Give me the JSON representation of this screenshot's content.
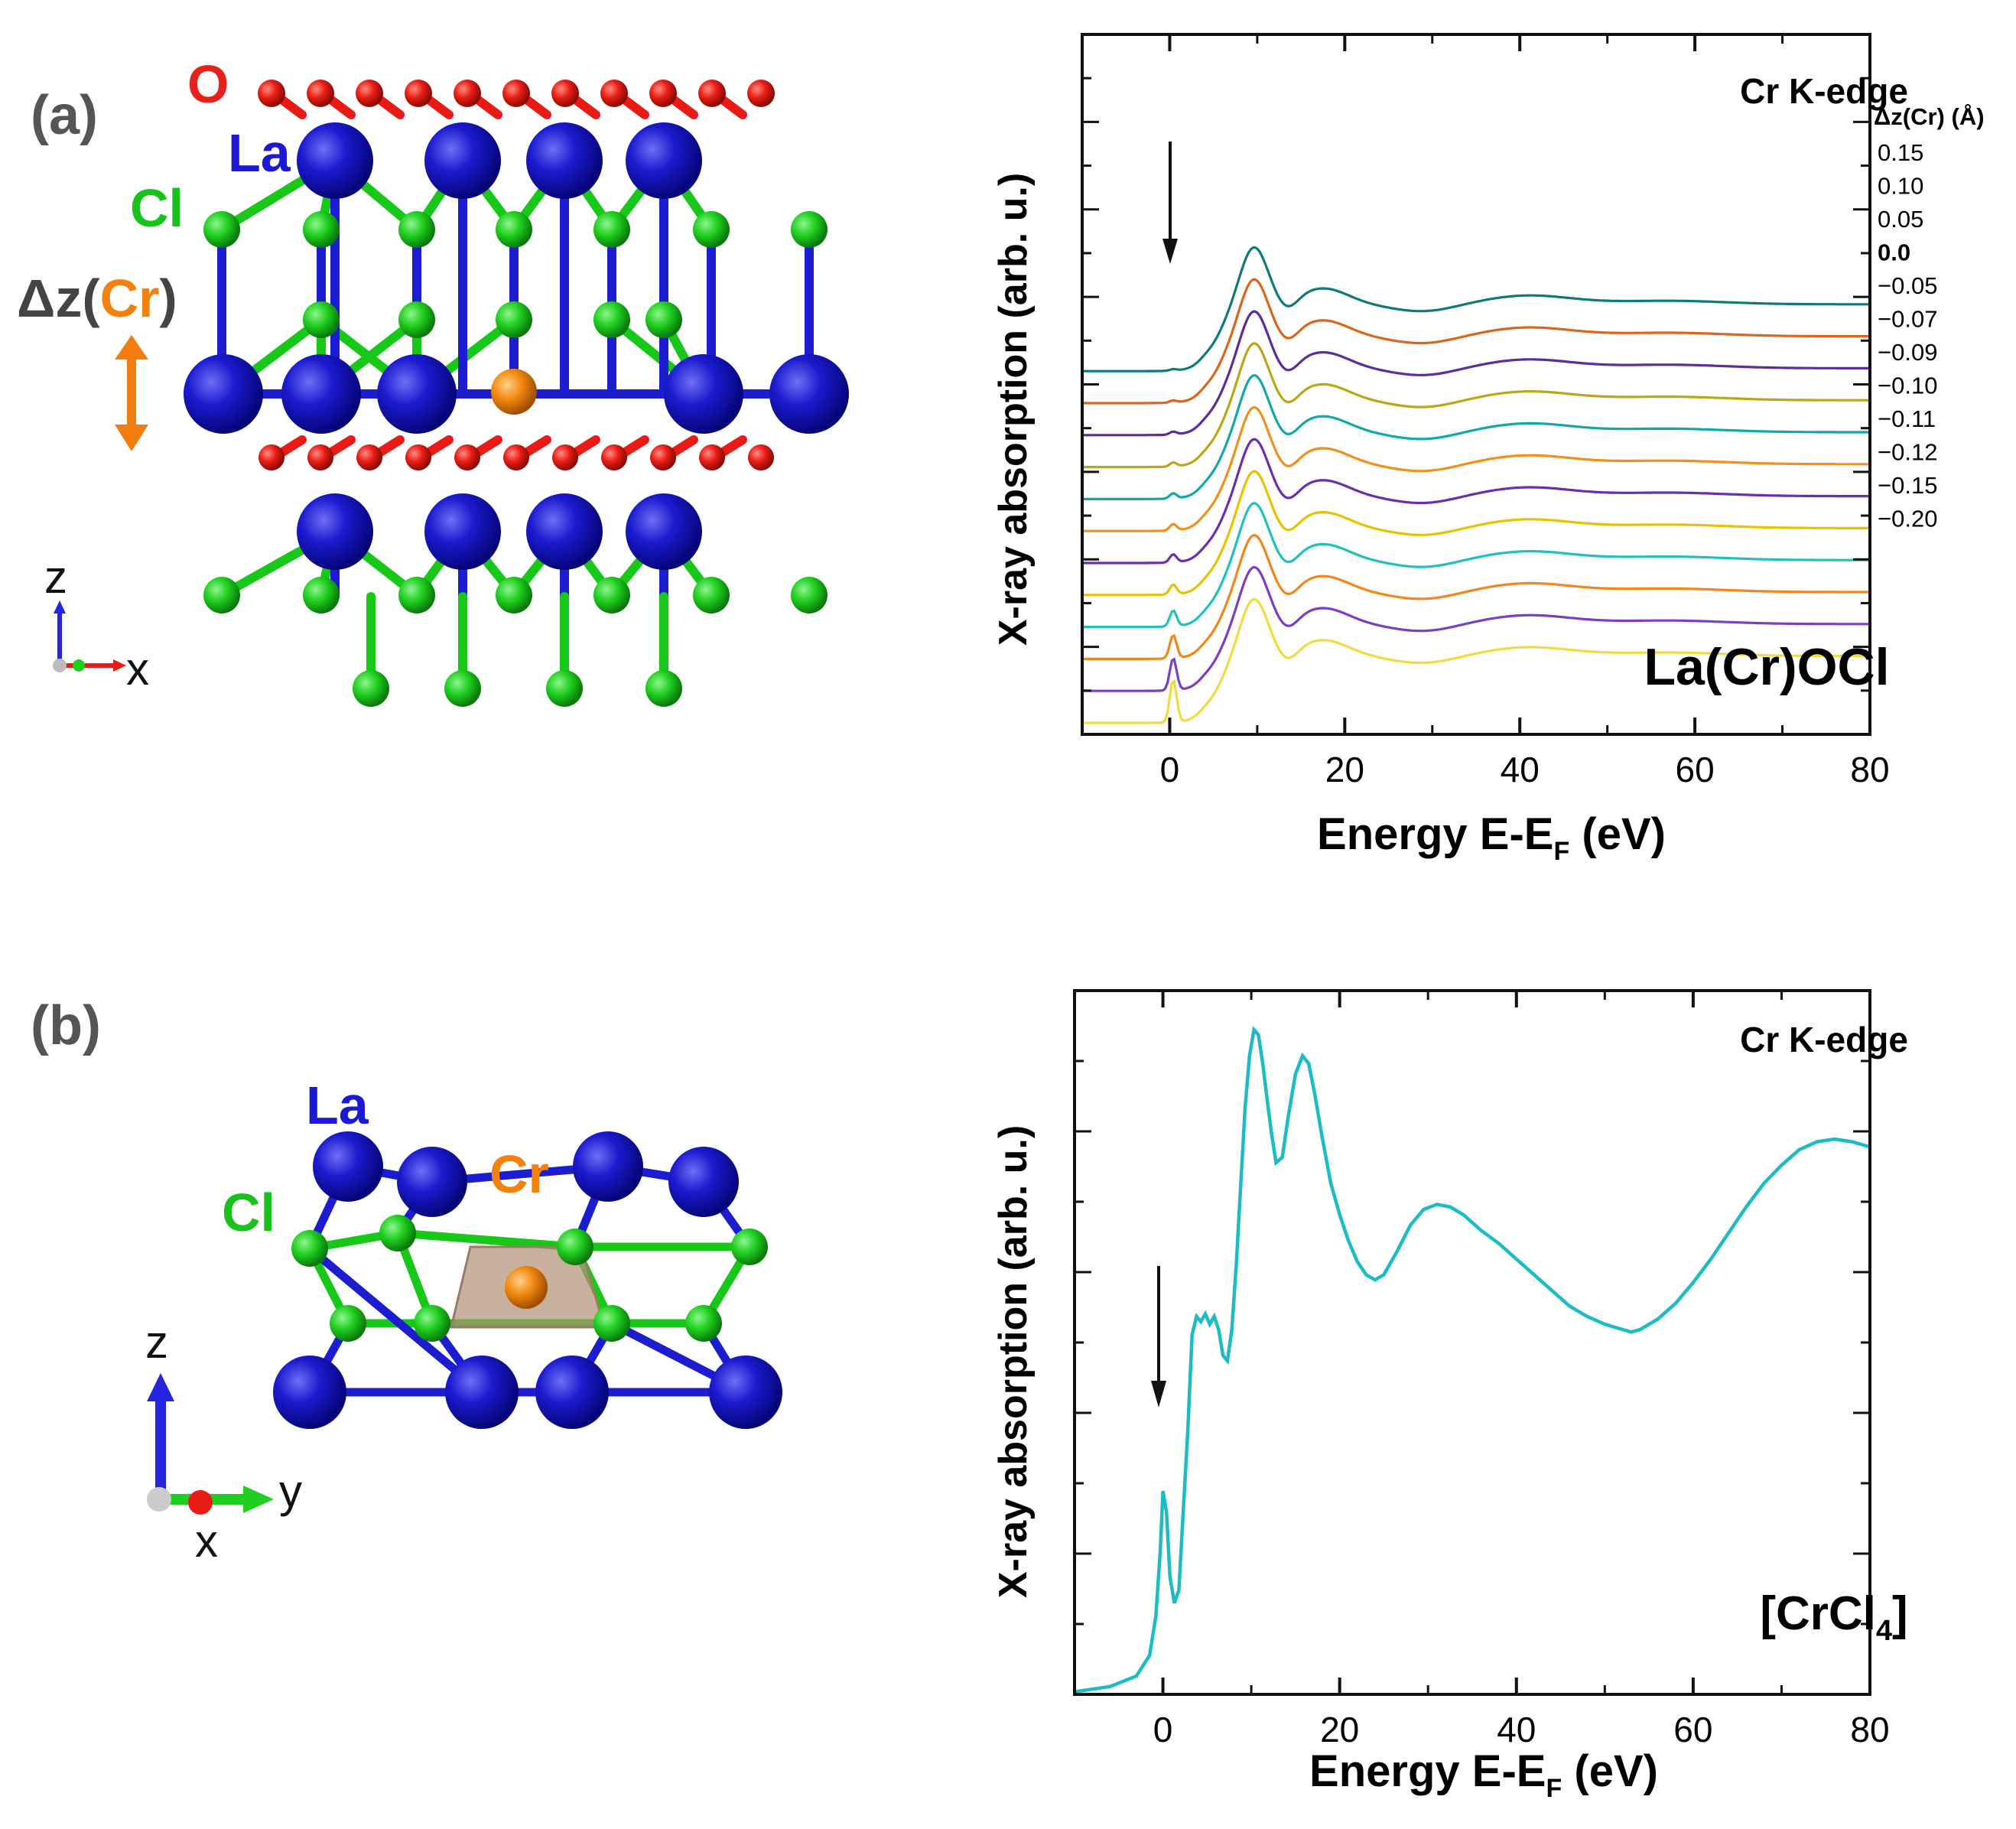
{
  "figure": {
    "panel_a_label": "(a)",
    "panel_b_label": "(b)",
    "panel_a_structure": {
      "labels": {
        "O": "O",
        "La": "La",
        "Cl": "Cl",
        "dz_prefix": "Δz(",
        "dz_elem": "Cr",
        "dz_suffix": ")"
      },
      "axes": {
        "vertical": "z",
        "horizontal": "x"
      },
      "colors": {
        "O": "#e8201a",
        "La": "#1a1ad6",
        "Cl": "#17c21a",
        "Cr": "#f2820c"
      }
    },
    "panel_b_structure": {
      "labels": {
        "La": "La",
        "Cl": "Cl",
        "Cr": "Cr"
      },
      "axes": {
        "vertical": "z",
        "horizontal": "y",
        "depth": "x"
      }
    }
  },
  "chart_data": [
    {
      "type": "line",
      "edge_label": "Cr K-edge",
      "compound_label": "La(Cr)OCl",
      "xlabel": "Energy E-E",
      "xlabel_sub": "F",
      "xlabel_unit": " (eV)",
      "ylabel": "X-ray  absorption (arb. u.)",
      "xlim": [
        -10,
        80
      ],
      "xticks": [
        "0",
        "20",
        "40",
        "60",
        "80"
      ],
      "legend_title": "Δz(Cr) (Å)",
      "series_offset_step": 1,
      "series": [
        {
          "name": "0.15",
          "color": "#0e7a7a",
          "prepeak": 0.05
        },
        {
          "name": "0.10",
          "color": "#d9661c",
          "prepeak": 0.07
        },
        {
          "name": "0.05",
          "color": "#5b2d9e",
          "prepeak": 0.1
        },
        {
          "name": "0.0",
          "color": "#b8a818",
          "prepeak": 0.14,
          "bold": true
        },
        {
          "name": "−0.05",
          "color": "#13a8a8",
          "prepeak": 0.18
        },
        {
          "name": "−0.07",
          "color": "#f2901a",
          "prepeak": 0.22
        },
        {
          "name": "−0.09",
          "color": "#6a2fb0",
          "prepeak": 0.28
        },
        {
          "name": "−0.10",
          "color": "#e8c200",
          "prepeak": 0.34
        },
        {
          "name": "−0.11",
          "color": "#1fc0c0",
          "prepeak": 0.55
        },
        {
          "name": "−0.12",
          "color": "#f2861a",
          "prepeak": 0.8
        },
        {
          "name": "−0.15",
          "color": "#7a3fc4",
          "prepeak": 1.1
        },
        {
          "name": "−0.20",
          "color": "#f0dc40",
          "prepeak": 1.45
        }
      ],
      "features": {
        "white_line_eV": 10,
        "second_peak_eV": 18,
        "exafs_peak1_eV": 41,
        "exafs_peak2_eV": 57
      }
    },
    {
      "type": "line",
      "edge_label": "Cr K-edge",
      "compound_label_prefix": "[CrCl",
      "compound_label_sub": "4",
      "compound_label_suffix": "]",
      "xlabel": "Energy E-E",
      "xlabel_sub": "F",
      "xlabel_unit": " (eV)",
      "ylabel": "X-ray  absorption (arb. u.)",
      "xlim": [
        -10,
        80
      ],
      "xticks": [
        "0",
        "20",
        "40",
        "60",
        "80"
      ],
      "color": "#1cbcc4",
      "x": [
        -10,
        -6,
        -3,
        -1.5,
        -0.8,
        -0.3,
        0,
        0.4,
        0.8,
        1.3,
        1.8,
        2.3,
        2.8,
        3.3,
        3.8,
        4.3,
        4.8,
        5.3,
        5.8,
        6.3,
        6.8,
        7.3,
        7.8,
        8.3,
        8.8,
        9.3,
        9.8,
        10.3,
        10.8,
        11.3,
        11.8,
        12.3,
        12.8,
        13.5,
        14.2,
        15,
        15.8,
        16.5,
        17.2,
        18,
        19,
        20,
        21,
        22,
        23,
        24,
        25,
        26.5,
        28,
        29.5,
        31,
        32.5,
        34,
        36,
        38,
        40,
        42,
        44,
        46,
        48,
        50,
        52,
        53,
        54,
        56,
        58,
        60,
        62,
        64,
        66,
        68,
        70,
        72,
        74,
        76,
        78,
        80
      ],
      "y": [
        0.01,
        0.03,
        0.07,
        0.15,
        0.3,
        0.55,
        0.78,
        0.7,
        0.45,
        0.35,
        0.4,
        0.7,
        1.0,
        1.38,
        1.45,
        1.43,
        1.46,
        1.42,
        1.45,
        1.4,
        1.3,
        1.28,
        1.4,
        1.65,
        1.95,
        2.25,
        2.45,
        2.55,
        2.53,
        2.42,
        2.28,
        2.15,
        2.04,
        2.06,
        2.22,
        2.38,
        2.45,
        2.42,
        2.3,
        2.14,
        1.96,
        1.84,
        1.74,
        1.66,
        1.61,
        1.59,
        1.61,
        1.7,
        1.8,
        1.86,
        1.88,
        1.87,
        1.84,
        1.78,
        1.73,
        1.67,
        1.61,
        1.55,
        1.49,
        1.45,
        1.42,
        1.4,
        1.39,
        1.4,
        1.44,
        1.5,
        1.58,
        1.67,
        1.77,
        1.87,
        1.96,
        2.03,
        2.09,
        2.12,
        2.13,
        2.12,
        2.1
      ],
      "ylim": [
        0,
        2.7
      ]
    }
  ]
}
